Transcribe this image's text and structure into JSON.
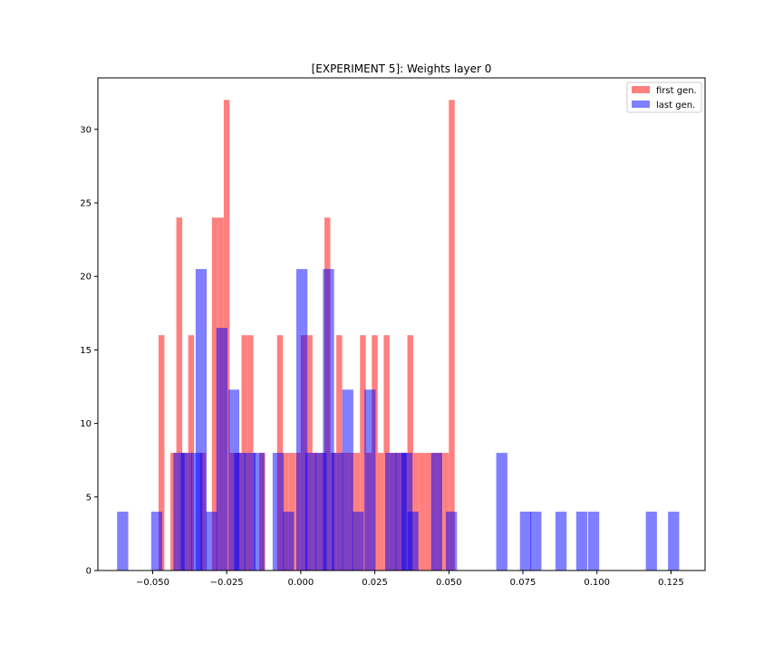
{
  "chart_data": {
    "type": "histogram",
    "title": "[EXPERIMENT 5]: Weights layer 0",
    "xlabel": "",
    "ylabel": "",
    "xlim": [
      -0.0685,
      0.1365
    ],
    "ylim": [
      0,
      33.5
    ],
    "x_ticks": [
      -0.05,
      -0.025,
      0.0,
      0.025,
      0.05,
      0.075,
      0.1,
      0.125
    ],
    "x_tick_labels": [
      "−0.050",
      "−0.025",
      "0.000",
      "0.025",
      "0.050",
      "0.075",
      "0.100",
      "0.125"
    ],
    "y_ticks": [
      0,
      5,
      10,
      15,
      20,
      25,
      30
    ],
    "y_tick_labels": [
      "0",
      "5",
      "10",
      "15",
      "20",
      "25",
      "30"
    ],
    "legend_position": "top-right",
    "grid": false,
    "series": [
      {
        "name": "first gen.",
        "color": "#ff0000",
        "alpha": 0.5,
        "bin_width": 0.00197,
        "bins": [
          [
            -0.048,
            16
          ],
          [
            -0.044,
            8
          ],
          [
            -0.042,
            24
          ],
          [
            -0.04,
            8
          ],
          [
            -0.038,
            16
          ],
          [
            -0.034,
            8
          ],
          [
            -0.03,
            24
          ],
          [
            -0.028,
            24
          ],
          [
            -0.026,
            32
          ],
          [
            -0.024,
            8
          ],
          [
            -0.022,
            8
          ],
          [
            -0.02,
            16
          ],
          [
            -0.018,
            16
          ],
          [
            -0.014,
            8
          ],
          [
            -0.008,
            16
          ],
          [
            -0.006,
            8
          ],
          [
            -0.004,
            8
          ],
          [
            -0.002,
            8
          ],
          [
            0.0,
            16
          ],
          [
            0.002,
            16
          ],
          [
            0.004,
            8
          ],
          [
            0.006,
            8
          ],
          [
            0.008,
            24
          ],
          [
            0.01,
            8
          ],
          [
            0.012,
            16
          ],
          [
            0.014,
            8
          ],
          [
            0.016,
            8
          ],
          [
            0.018,
            8
          ],
          [
            0.02,
            16
          ],
          [
            0.022,
            8
          ],
          [
            0.024,
            16
          ],
          [
            0.026,
            8
          ],
          [
            0.028,
            16
          ],
          [
            0.03,
            8
          ],
          [
            0.032,
            8
          ],
          [
            0.034,
            8
          ],
          [
            0.036,
            16
          ],
          [
            0.038,
            8
          ],
          [
            0.04,
            8
          ],
          [
            0.042,
            8
          ],
          [
            0.044,
            8
          ],
          [
            0.046,
            8
          ],
          [
            0.048,
            8
          ],
          [
            0.05,
            32
          ]
        ]
      },
      {
        "name": "last gen.",
        "color": "#0000ff",
        "alpha": 0.5,
        "bin_width": 0.00375,
        "bins": [
          [
            -0.062,
            4
          ],
          [
            -0.0505,
            4
          ],
          [
            -0.043,
            8
          ],
          [
            -0.0405,
            8
          ],
          [
            -0.037,
            8
          ],
          [
            -0.0355,
            20.5
          ],
          [
            -0.032,
            4
          ],
          [
            -0.0285,
            16.5
          ],
          [
            -0.0245,
            12.3
          ],
          [
            -0.0225,
            8
          ],
          [
            -0.019,
            8
          ],
          [
            -0.016,
            8
          ],
          [
            -0.0095,
            8
          ],
          [
            -0.006,
            4
          ],
          [
            -0.0015,
            20.5
          ],
          [
            0.0015,
            8
          ],
          [
            0.005,
            8
          ],
          [
            0.0075,
            20.5
          ],
          [
            0.0105,
            8
          ],
          [
            0.014,
            12.3
          ],
          [
            0.0175,
            4
          ],
          [
            0.0215,
            12.3
          ],
          [
            0.0285,
            8
          ],
          [
            0.032,
            8
          ],
          [
            0.034,
            8
          ],
          [
            0.036,
            4
          ],
          [
            0.044,
            8
          ],
          [
            0.049,
            4
          ],
          [
            0.066,
            8
          ],
          [
            0.074,
            4
          ],
          [
            0.0775,
            4
          ],
          [
            0.086,
            4
          ],
          [
            0.093,
            4
          ],
          [
            0.097,
            4
          ],
          [
            0.1165,
            4
          ],
          [
            0.124,
            4
          ]
        ]
      }
    ]
  }
}
